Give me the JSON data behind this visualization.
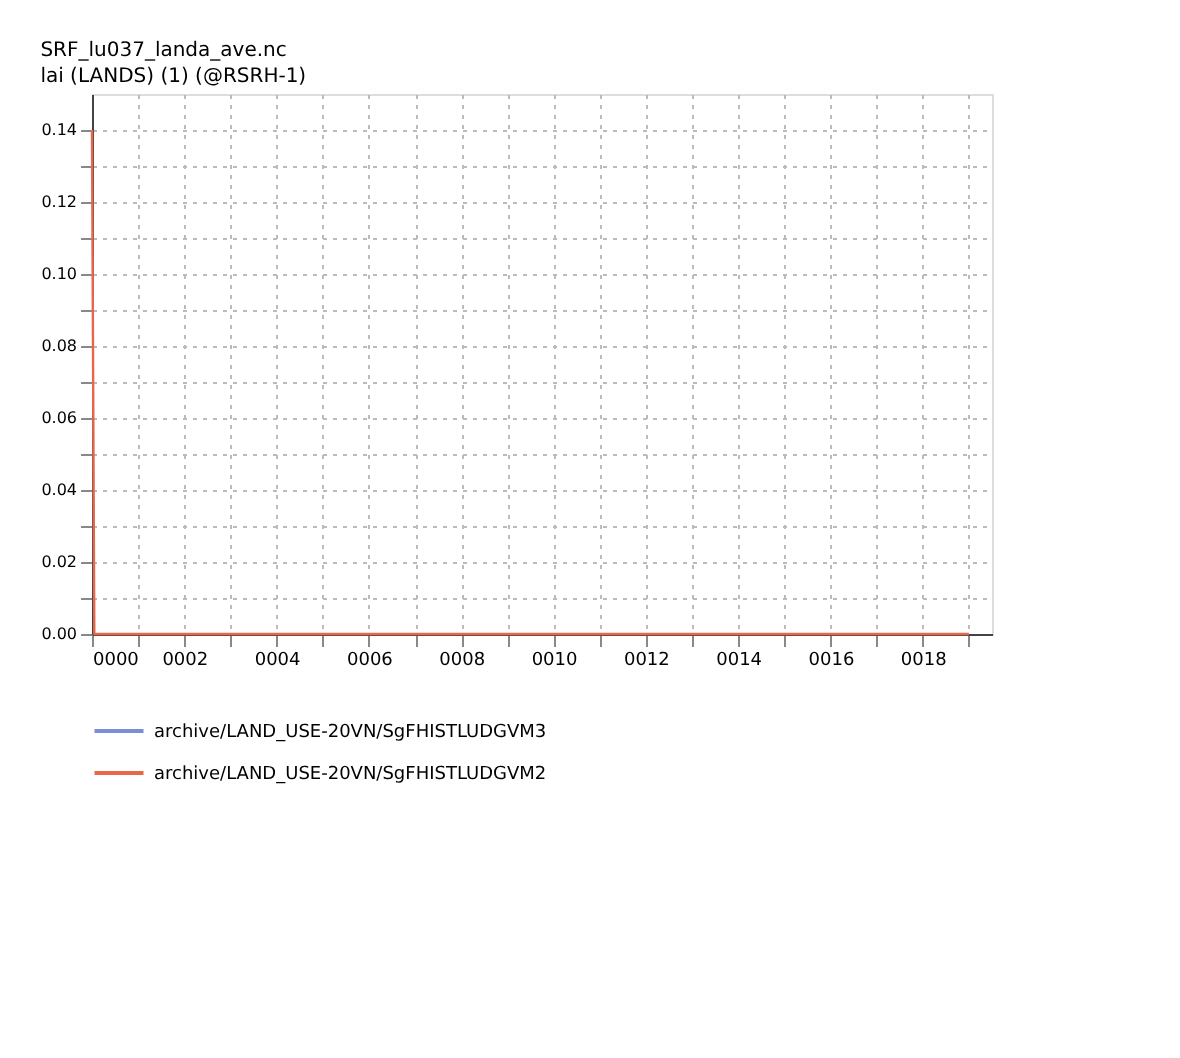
{
  "chart_data": {
    "type": "line",
    "title": "SRF_lu037_landa_ave.nc",
    "subtitle": "lai (LANDS) (1) (@RSRH-1)",
    "series": [
      {
        "name": "archive/LAND_USE-20VN/SgFHISTLUDGVM3",
        "color": "#7a8fd6"
      },
      {
        "name": "archive/LAND_USE-20VN/SgFHISTLUDGVM2",
        "color": "#e8674a",
        "x": [
          0,
          0.05,
          19
        ],
        "values": [
          0.14,
          0,
          0
        ]
      }
    ],
    "xlim": [
      0,
      19.5
    ],
    "xticks": [
      {
        "value": 0,
        "label": "0000"
      },
      {
        "value": 1,
        "label": null
      },
      {
        "value": 2,
        "label": "0002"
      },
      {
        "value": 3,
        "label": null
      },
      {
        "value": 4,
        "label": "0004"
      },
      {
        "value": 5,
        "label": null
      },
      {
        "value": 6,
        "label": "0006"
      },
      {
        "value": 7,
        "label": null
      },
      {
        "value": 8,
        "label": "0008"
      },
      {
        "value": 9,
        "label": null
      },
      {
        "value": 10,
        "label": "0010"
      },
      {
        "value": 11,
        "label": null
      },
      {
        "value": 12,
        "label": "0012"
      },
      {
        "value": 13,
        "label": null
      },
      {
        "value": 14,
        "label": "0014"
      },
      {
        "value": 15,
        "label": null
      },
      {
        "value": 16,
        "label": "0016"
      },
      {
        "value": 17,
        "label": null
      },
      {
        "value": 18,
        "label": "0018"
      },
      {
        "value": 19,
        "label": null
      }
    ],
    "ylim": [
      0,
      0.15
    ],
    "yticks": [
      {
        "value": 0,
        "label": "0.00"
      },
      {
        "value": 0.01,
        "label": null
      },
      {
        "value": 0.02,
        "label": "0.02"
      },
      {
        "value": 0.03,
        "label": null
      },
      {
        "value": 0.04,
        "label": "0.04"
      },
      {
        "value": 0.05,
        "label": null
      },
      {
        "value": 0.06,
        "label": "0.06"
      },
      {
        "value": 0.07,
        "label": null
      },
      {
        "value": 0.08,
        "label": "0.08"
      },
      {
        "value": 0.09,
        "label": null
      },
      {
        "value": 0.1,
        "label": "0.10"
      },
      {
        "value": 0.11,
        "label": null
      },
      {
        "value": 0.12,
        "label": "0.12"
      },
      {
        "value": 0.13,
        "label": null
      },
      {
        "value": 0.14,
        "label": "0.14"
      }
    ],
    "grid": true,
    "legend": "bottom left",
    "line_style": "solid"
  }
}
